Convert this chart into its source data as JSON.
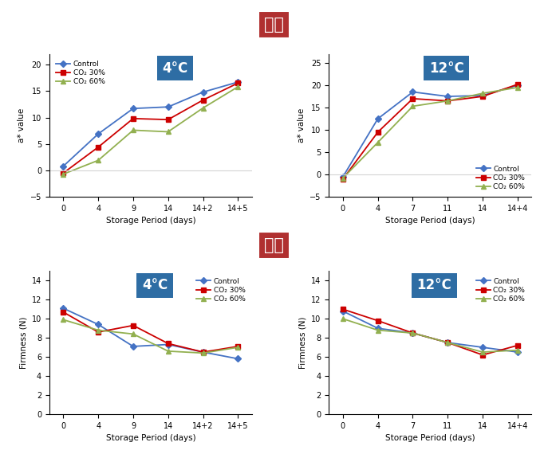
{
  "title_saekdo": "색도",
  "title_gyeongdo": "경도",
  "temp_4c": "4°C",
  "temp_12c": "12°C",
  "xlabel": "Storage Period (days)",
  "ylabel_a": "a* value",
  "ylabel_f": "Firmness (N)",
  "color4c_xticklabels": [
    "0",
    "4",
    "9",
    "14",
    "14+2",
    "14+5"
  ],
  "color12c_xticklabels": [
    "0",
    "4",
    "7",
    "11",
    "14",
    "14+4"
  ],
  "firm4c_xticklabels": [
    "0",
    "4",
    "9",
    "14",
    "14+2",
    "14+5"
  ],
  "firm12c_xticklabels": [
    "0",
    "4",
    "7",
    "11",
    "14",
    "14+4"
  ],
  "color4c": {
    "control": [
      0.8,
      6.9,
      11.7,
      12.0,
      14.8,
      16.7
    ],
    "co2_30": [
      -0.5,
      4.4,
      9.8,
      9.6,
      13.3,
      16.5
    ],
    "co2_60": [
      -0.7,
      1.9,
      7.6,
      7.3,
      11.8,
      15.8
    ]
  },
  "color12c": {
    "control": [
      -0.5,
      12.5,
      18.5,
      17.5,
      17.7,
      20.0
    ],
    "co2_30": [
      -1.0,
      9.5,
      17.0,
      16.5,
      17.5,
      20.2
    ],
    "co2_60": [
      -0.8,
      7.2,
      15.3,
      16.5,
      18.2,
      19.5
    ]
  },
  "firm4c": {
    "control": [
      11.1,
      9.4,
      7.1,
      7.3,
      6.5,
      5.8
    ],
    "co2_30": [
      10.7,
      8.6,
      9.3,
      7.4,
      6.5,
      7.1
    ],
    "co2_60": [
      9.9,
      8.8,
      8.4,
      6.6,
      6.4,
      7.0
    ]
  },
  "firm12c": {
    "control": [
      10.8,
      9.0,
      8.5,
      7.5,
      7.0,
      6.5
    ],
    "co2_30": [
      11.0,
      9.8,
      8.5,
      7.5,
      6.2,
      7.2
    ],
    "co2_60": [
      10.0,
      8.8,
      8.5,
      7.5,
      6.5,
      6.7
    ]
  },
  "color_control": "#4472C4",
  "color_co2_30": "#CC0000",
  "color_co2_60": "#92B050",
  "marker_control": "D",
  "marker_co2_30": "s",
  "marker_co2_60": "^",
  "color4c_ylim": [
    -5,
    22
  ],
  "color12c_ylim": [
    -5,
    27
  ],
  "firm4c_ylim": [
    0,
    15
  ],
  "firm12c_ylim": [
    0,
    15
  ],
  "legend_labels": [
    "Control",
    "CO₂ 30%",
    "CO₂ 60%"
  ],
  "title_box_color_red": "#B03030",
  "title_box_color_blue": "#2E6DA4",
  "title_text_color": "#FFFFFF"
}
